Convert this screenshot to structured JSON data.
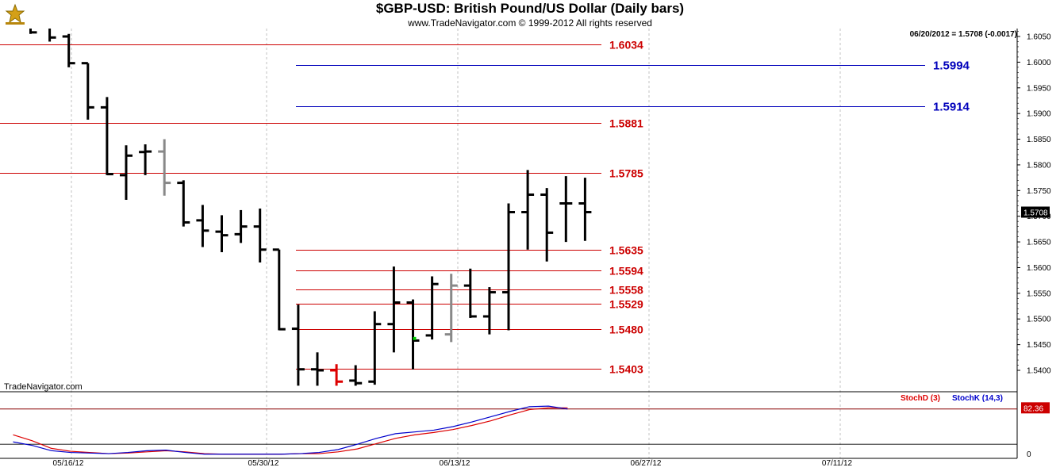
{
  "title": "$GBP-USD:  British Pound/US Dollar  (Daily bars)",
  "subtitle": "www.TradeNavigator.com © 1999-2012 All rights reserved",
  "last_info": "06/20/2012 = 1.5708 (-0.0017)",
  "last_price_tag": "1.5708",
  "watermark": "TradeNavigator.com",
  "colors": {
    "red_level": "#cc0000",
    "blue_level": "#0000bb",
    "bar": "#000000",
    "bar_gray": "#888888",
    "bar_red": "#dd0000",
    "stochD": "#dd0000",
    "stochK": "#0000cc",
    "grid": "#c0c0c0"
  },
  "chart_data": [
    {
      "type": "ohlc",
      "title": "$GBP-USD:  British Pound/US Dollar  (Daily bars)",
      "ylim": [
        1.537,
        1.608
      ],
      "y_ticks": [
        "1.6050",
        "1.6000",
        "1.5950",
        "1.5900",
        "1.5850",
        "1.5800",
        "1.5750",
        "1.5700",
        "1.5650",
        "1.5600",
        "1.5550",
        "1.5500",
        "1.5450",
        "1.5400"
      ],
      "x_ticks": [
        "05/16/12",
        "05/30/12",
        "06/13/12",
        "06/27/12",
        "07/11/12"
      ],
      "horizontal_levels": [
        {
          "value": 1.6034,
          "label": "1.6034",
          "color": "red"
        },
        {
          "value": 1.5994,
          "label": "1.5994",
          "color": "blue"
        },
        {
          "value": 1.5914,
          "label": "1.5914",
          "color": "blue"
        },
        {
          "value": 1.5881,
          "label": "1.5881",
          "color": "red"
        },
        {
          "value": 1.5785,
          "label": "1.5785",
          "color": "red"
        },
        {
          "value": 1.5635,
          "label": "1.5635",
          "color": "red"
        },
        {
          "value": 1.5594,
          "label": "1.5594",
          "color": "red"
        },
        {
          "value": 1.5558,
          "label": "1.5558",
          "color": "red"
        },
        {
          "value": 1.5529,
          "label": "1.5529",
          "color": "red"
        },
        {
          "value": 1.548,
          "label": "1.5480",
          "color": "red"
        },
        {
          "value": 1.5403,
          "label": "1.5403",
          "color": "red"
        }
      ],
      "bars": [
        {
          "date": "05/10/12",
          "high": 1.6088,
          "low": 1.6055,
          "open": 1.6078,
          "close": 1.6058
        },
        {
          "date": "05/11/12",
          "high": 1.6078,
          "low": 1.604,
          "open": 1.607,
          "close": 1.6048
        },
        {
          "date": "05/14/12",
          "high": 1.6055,
          "low": 1.599,
          "open": 1.605,
          "close": 1.5998
        },
        {
          "date": "05/15/12",
          "high": 1.5998,
          "low": 1.5888,
          "open": 1.5998,
          "close": 1.5912
        },
        {
          "date": "05/16/12",
          "high": 1.5932,
          "low": 1.578,
          "open": 1.5912,
          "close": 1.5782
        },
        {
          "date": "05/17/12",
          "high": 1.5838,
          "low": 1.5732,
          "open": 1.578,
          "close": 1.5818
        },
        {
          "date": "05/18/12",
          "high": 1.584,
          "low": 1.578,
          "open": 1.5825,
          "close": 1.5826,
          "color": "black"
        },
        {
          "date": "05/21/12",
          "high": 1.585,
          "low": 1.574,
          "open": 1.5826,
          "close": 1.5765,
          "color": "gray"
        },
        {
          "date": "05/22/12",
          "high": 1.577,
          "low": 1.568,
          "open": 1.5765,
          "close": 1.5688
        },
        {
          "date": "05/23/12",
          "high": 1.5722,
          "low": 1.564,
          "open": 1.5692,
          "close": 1.5672
        },
        {
          "date": "05/24/12",
          "high": 1.5702,
          "low": 1.563,
          "open": 1.567,
          "close": 1.5663
        },
        {
          "date": "05/25/12",
          "high": 1.5712,
          "low": 1.5648,
          "open": 1.5665,
          "close": 1.568
        },
        {
          "date": "05/28/12",
          "high": 1.5715,
          "low": 1.561,
          "open": 1.568,
          "close": 1.5635
        },
        {
          "date": "05/29/12",
          "high": 1.5635,
          "low": 1.5478,
          "open": 1.5635,
          "close": 1.548
        },
        {
          "date": "05/30/12",
          "high": 1.5528,
          "low": 1.537,
          "open": 1.5481,
          "close": 1.5402
        },
        {
          "date": "05/31/12",
          "high": 1.5435,
          "low": 1.537,
          "open": 1.5402,
          "close": 1.54
        },
        {
          "date": "06/01/12",
          "high": 1.5412,
          "low": 1.537,
          "open": 1.54,
          "close": 1.5378,
          "color": "red"
        },
        {
          "date": "06/04/12",
          "high": 1.541,
          "low": 1.537,
          "open": 1.538,
          "close": 1.5375
        },
        {
          "date": "06/05/12",
          "high": 1.5515,
          "low": 1.5372,
          "open": 1.5378,
          "close": 1.549
        },
        {
          "date": "06/06/12",
          "high": 1.5602,
          "low": 1.5435,
          "open": 1.549,
          "close": 1.5532
        },
        {
          "date": "06/07/12",
          "high": 1.5538,
          "low": 1.5402,
          "open": 1.5532,
          "close": 1.5458
        },
        {
          "date": "06/08/12",
          "high": 1.5583,
          "low": 1.546,
          "open": 1.5468,
          "close": 1.5568,
          "color": "black"
        },
        {
          "date": "06/11/12",
          "high": 1.5588,
          "low": 1.5455,
          "open": 1.547,
          "close": 1.5565,
          "color": "gray"
        },
        {
          "date": "06/12/12",
          "high": 1.5598,
          "low": 1.5502,
          "open": 1.5565,
          "close": 1.5505
        },
        {
          "date": "06/13/12",
          "high": 1.5562,
          "low": 1.547,
          "open": 1.5505,
          "close": 1.5552
        },
        {
          "date": "06/14/12",
          "high": 1.5725,
          "low": 1.5478,
          "open": 1.5552,
          "close": 1.5708
        },
        {
          "date": "06/15/12",
          "high": 1.579,
          "low": 1.5635,
          "open": 1.5708,
          "close": 1.5742
        },
        {
          "date": "06/18/12",
          "high": 1.5755,
          "low": 1.5612,
          "open": 1.5742,
          "close": 1.5668
        },
        {
          "date": "06/19/12",
          "high": 1.5778,
          "low": 1.565,
          "open": 1.5725,
          "close": 1.5725
        },
        {
          "date": "06/20/12",
          "high": 1.5775,
          "low": 1.5652,
          "open": 1.5725,
          "close": 1.5708
        }
      ]
    },
    {
      "type": "line",
      "ylim": [
        0,
        100
      ],
      "last_value_label": "82.36",
      "scale_labels": [
        "0"
      ],
      "series": [
        {
          "name": "StochD (3)",
          "values": [
            36,
            26,
            13,
            8,
            6,
            4,
            5,
            7,
            9,
            7,
            4,
            3,
            3,
            3,
            3,
            4,
            4,
            7,
            12,
            21,
            30,
            36,
            40,
            45,
            52,
            60,
            70,
            79,
            82,
            82
          ]
        },
        {
          "name": "StochK (14,3)",
          "values": [
            24,
            18,
            9,
            6,
            5,
            4,
            6,
            9,
            10,
            6,
            3,
            3,
            3,
            3,
            3,
            4,
            6,
            11,
            20,
            30,
            38,
            41,
            44,
            50,
            58,
            67,
            76,
            84,
            85,
            80
          ]
        }
      ]
    }
  ]
}
